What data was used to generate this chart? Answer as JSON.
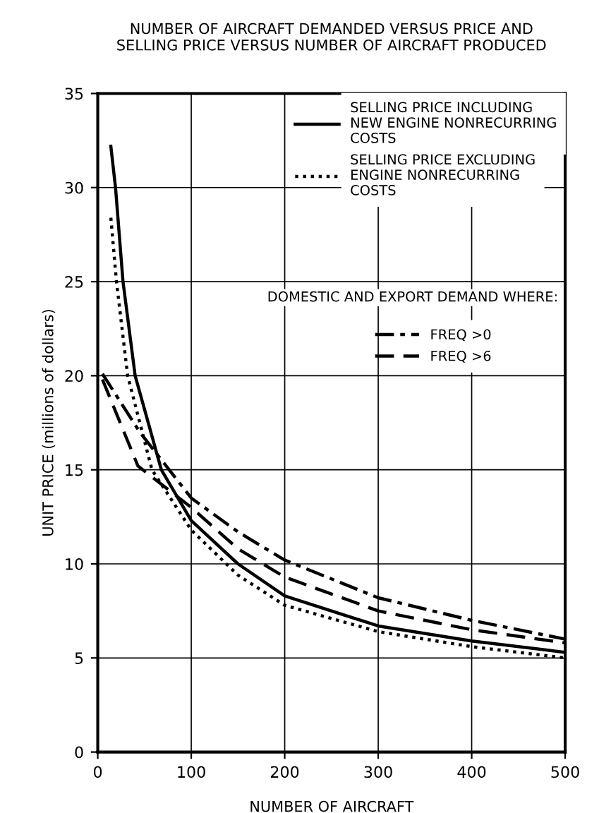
{
  "chart_data": {
    "type": "line",
    "title": "NUMBER OF AIRCRAFT DEMANDED VERSUS PRICE AND\nSELLING PRICE VERSUS NUMBER OF AIRCRAFT PRODUCED",
    "xlabel": "NUMBER OF AIRCRAFT",
    "ylabel": "UNIT PRICE (millions of dollars)",
    "xlim": [
      0,
      500
    ],
    "ylim": [
      0,
      35
    ],
    "xticks": [
      0,
      100,
      200,
      300,
      400,
      500
    ],
    "yticks": [
      0,
      5,
      10,
      15,
      20,
      25,
      30,
      35
    ],
    "grid": true,
    "legend": "top right",
    "annotations": [
      "DOMESTIC AND EXPORT DEMAND WHERE:"
    ],
    "series": [
      {
        "name": "SELLING PRICE INCLUDING\nNEW ENGINE NONRECURRING\nCOSTS",
        "color": "#000000",
        "line_style": "solid",
        "x": [
          14,
          19,
          27,
          40,
          68,
          100,
          150,
          200,
          300,
          400,
          500
        ],
        "values": [
          32.2,
          30,
          25,
          20,
          15,
          12.3,
          10,
          8.3,
          6.7,
          5.9,
          5.3
        ]
      },
      {
        "name": "SELLING PRICE EXCLUDING\nENGINE NONRECURRING\nCOSTS",
        "color": "#000000",
        "line_style": "dotted",
        "x": [
          14,
          20,
          32,
          58,
          100,
          150,
          200,
          300,
          400,
          500
        ],
        "values": [
          28.4,
          25,
          20,
          15,
          11.8,
          9.4,
          7.8,
          6.4,
          5.6,
          5.0
        ]
      },
      {
        "name": "FREQ >0",
        "color": "#000000",
        "line_style": "dashdot",
        "x": [
          5,
          45,
          100,
          150,
          200,
          300,
          400,
          500
        ],
        "values": [
          20.1,
          17,
          13.5,
          11.7,
          10.2,
          8.2,
          7,
          6
        ]
      },
      {
        "name": "FREQ >6",
        "color": "#000000",
        "line_style": "dashed",
        "x": [
          5,
          43,
          100,
          150,
          200,
          300,
          400,
          500
        ],
        "values": [
          19.8,
          15.2,
          13,
          10.8,
          9.3,
          7.5,
          6.5,
          5.8
        ]
      }
    ]
  }
}
